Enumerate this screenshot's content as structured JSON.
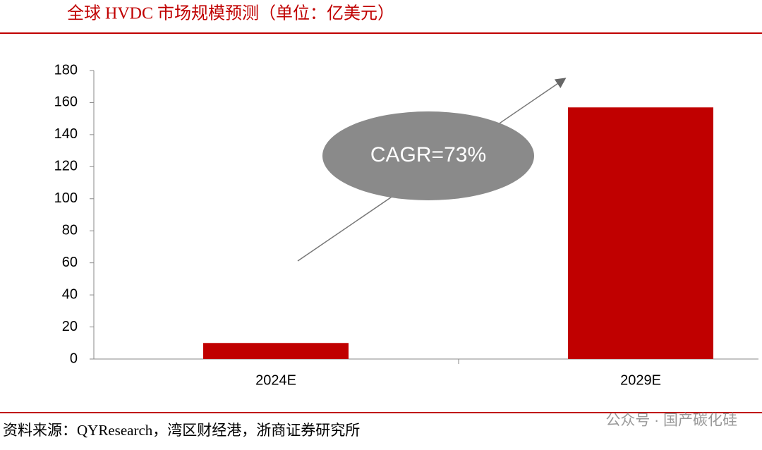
{
  "chart_data": {
    "type": "bar",
    "title": "全球 HVDC 市场规模预测（单位：亿美元）",
    "categories": [
      "2024E",
      "2029E"
    ],
    "values": [
      10,
      157
    ],
    "color": "#c00000",
    "ylim": [
      0,
      180
    ],
    "yticks": [
      0,
      20,
      40,
      60,
      80,
      100,
      120,
      140,
      160,
      180
    ],
    "annotation": "CAGR=73%",
    "source": "资料来源：QYResearch，湾区财经港，浙商证券研究所",
    "watermark": "公众号 · 国产碳化硅"
  }
}
